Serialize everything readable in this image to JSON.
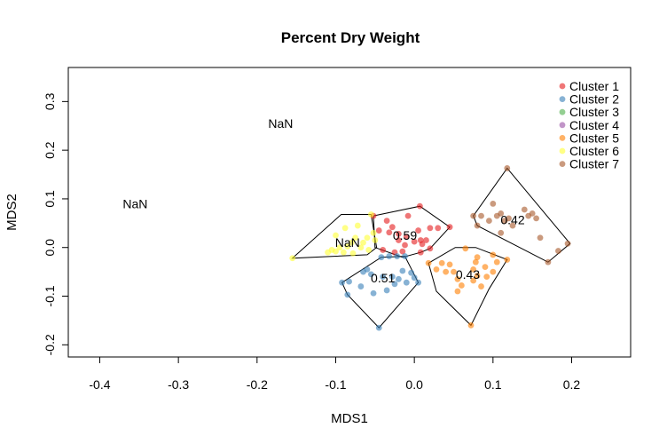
{
  "chart_data": {
    "type": "scatter",
    "title": "Percent Dry Weight",
    "xlabel": "MDS1",
    "ylabel": "MDS2",
    "xlim": [
      -0.44,
      0.275
    ],
    "ylim": [
      -0.225,
      0.37
    ],
    "x_ticks": [
      -0.4,
      -0.3,
      -0.2,
      -0.1,
      0.0,
      0.1,
      0.2
    ],
    "x_tick_labels": [
      "-0.4",
      "-0.3",
      "-0.2",
      "-0.1",
      "0.0",
      "0.1",
      "0.2"
    ],
    "y_ticks": [
      -0.2,
      -0.1,
      0.0,
      0.1,
      0.2,
      0.3
    ],
    "y_tick_labels": [
      "-0.2",
      "-0.1",
      "0.0",
      "0.1",
      "0.2",
      "0.3"
    ],
    "legend_position": "top-right",
    "series": [
      {
        "name": "Cluster 1",
        "color": "#E41A1C",
        "points": [
          [
            -0.035,
            0.055
          ],
          [
            -0.028,
            0.042
          ],
          [
            -0.008,
            0.065
          ],
          [
            -0.045,
            0.035
          ],
          [
            -0.032,
            0.031
          ],
          [
            -0.02,
            0.028
          ],
          [
            -0.01,
            0.022
          ],
          [
            0.005,
            0.035
          ],
          [
            0.02,
            0.04
          ],
          [
            0.03,
            0.04
          ],
          [
            0.008,
            0.015
          ],
          [
            0.015,
            0.015
          ],
          [
            0.0,
            0.012
          ],
          [
            -0.02,
            0.015
          ],
          [
            0.01,
            0.007
          ],
          [
            -0.012,
            0.005
          ],
          [
            0.02,
            -0.002
          ],
          [
            0.008,
            -0.01
          ],
          [
            -0.04,
            -0.005
          ],
          [
            -0.025,
            -0.01
          ],
          [
            -0.015,
            -0.008
          ],
          [
            0.007,
            0.085
          ],
          [
            -0.052,
            0.065
          ],
          [
            0.045,
            0.042
          ]
        ],
        "hull": [
          [
            -0.052,
            0.065
          ],
          [
            0.007,
            0.085
          ],
          [
            0.045,
            0.042
          ],
          [
            0.02,
            -0.002
          ],
          [
            0.008,
            -0.01
          ],
          [
            -0.015,
            -0.02
          ],
          [
            -0.05,
            0.0
          ]
        ]
      },
      {
        "name": "Cluster 2",
        "color": "#377EB8",
        "points": [
          [
            -0.092,
            -0.072
          ],
          [
            -0.083,
            -0.07
          ],
          [
            -0.085,
            -0.097
          ],
          [
            -0.06,
            -0.045
          ],
          [
            -0.055,
            -0.055
          ],
          [
            -0.04,
            -0.06
          ],
          [
            -0.052,
            -0.094
          ],
          [
            -0.042,
            -0.02
          ],
          [
            -0.045,
            -0.165
          ],
          [
            -0.035,
            -0.088
          ],
          [
            -0.028,
            -0.06
          ],
          [
            -0.025,
            -0.075
          ],
          [
            -0.02,
            -0.065
          ],
          [
            -0.015,
            -0.048
          ],
          [
            -0.01,
            -0.072
          ],
          [
            -0.032,
            -0.018
          ],
          [
            -0.022,
            -0.018
          ],
          [
            -0.012,
            -0.018
          ],
          [
            -0.004,
            -0.052
          ],
          [
            0.0,
            -0.062
          ],
          [
            0.005,
            -0.072
          ],
          [
            -0.065,
            -0.05
          ],
          [
            -0.068,
            -0.08
          ]
        ],
        "hull": [
          [
            -0.092,
            -0.072
          ],
          [
            -0.042,
            -0.02
          ],
          [
            -0.012,
            -0.018
          ],
          [
            0.005,
            -0.072
          ],
          [
            -0.045,
            -0.165
          ],
          [
            -0.085,
            -0.097
          ]
        ]
      },
      {
        "name": "Cluster 3",
        "color": "#4DAF4A",
        "points": []
      },
      {
        "name": "Cluster 4",
        "color": "#984EA3",
        "points": []
      },
      {
        "name": "Cluster 5",
        "color": "#FF7F00",
        "points": [
          [
            0.065,
            -0.002
          ],
          [
            0.018,
            -0.032
          ],
          [
            0.028,
            -0.045
          ],
          [
            0.04,
            -0.05
          ],
          [
            0.045,
            -0.035
          ],
          [
            0.05,
            -0.05
          ],
          [
            0.055,
            -0.065
          ],
          [
            0.06,
            -0.078
          ],
          [
            0.075,
            -0.045
          ],
          [
            0.075,
            -0.068
          ],
          [
            0.08,
            -0.058
          ],
          [
            0.085,
            -0.08
          ],
          [
            0.09,
            -0.04
          ],
          [
            0.092,
            -0.06
          ],
          [
            0.08,
            -0.02
          ],
          [
            0.1,
            -0.015
          ],
          [
            0.105,
            -0.03
          ],
          [
            0.1,
            -0.05
          ],
          [
            0.078,
            -0.03
          ],
          [
            0.072,
            -0.16
          ],
          [
            0.118,
            -0.025
          ],
          [
            0.055,
            -0.09
          ],
          [
            0.035,
            -0.032
          ]
        ],
        "hull": [
          [
            0.018,
            -0.032
          ],
          [
            0.052,
            0.0
          ],
          [
            0.078,
            0.0
          ],
          [
            0.118,
            -0.025
          ],
          [
            0.095,
            -0.085
          ],
          [
            0.072,
            -0.16
          ],
          [
            0.028,
            -0.09
          ]
        ]
      },
      {
        "name": "Cluster 6",
        "color": "#FFFF33",
        "points": [
          [
            -0.155,
            -0.022
          ],
          [
            -0.11,
            -0.01
          ],
          [
            -0.105,
            -0.005
          ],
          [
            -0.1,
            -0.008
          ],
          [
            -0.095,
            0.0
          ],
          [
            -0.09,
            -0.01
          ],
          [
            -0.085,
            0.002
          ],
          [
            -0.08,
            0.01
          ],
          [
            -0.075,
            0.02
          ],
          [
            -0.072,
            0.045
          ],
          [
            -0.068,
            0.0
          ],
          [
            -0.065,
            0.01
          ],
          [
            -0.06,
            0.02
          ],
          [
            -0.058,
            -0.005
          ],
          [
            -0.055,
            0.068
          ],
          [
            -0.052,
            0.03
          ],
          [
            -0.05,
            0.015
          ],
          [
            -0.088,
            0.04
          ],
          [
            -0.1,
            0.025
          ],
          [
            -0.078,
            -0.012
          ]
        ],
        "hull": [
          [
            -0.155,
            -0.022
          ],
          [
            -0.093,
            0.068
          ],
          [
            -0.055,
            0.068
          ],
          [
            -0.048,
            0.0
          ],
          [
            -0.06,
            -0.015
          ]
        ]
      },
      {
        "name": "Cluster 7",
        "color": "#A65628",
        "points": [
          [
            0.118,
            0.163
          ],
          [
            0.075,
            0.065
          ],
          [
            0.085,
            0.065
          ],
          [
            0.08,
            0.045
          ],
          [
            0.1,
            0.09
          ],
          [
            0.105,
            0.065
          ],
          [
            0.11,
            0.07
          ],
          [
            0.115,
            0.055
          ],
          [
            0.12,
            0.06
          ],
          [
            0.095,
            0.055
          ],
          [
            0.14,
            0.078
          ],
          [
            0.15,
            0.07
          ],
          [
            0.145,
            0.065
          ],
          [
            0.16,
            0.02
          ],
          [
            0.125,
            0.045
          ],
          [
            0.11,
            0.03
          ],
          [
            0.155,
            0.06
          ],
          [
            0.17,
            -0.03
          ],
          [
            0.195,
            0.008
          ],
          [
            0.183,
            -0.007
          ]
        ],
        "hull": [
          [
            0.075,
            0.065
          ],
          [
            0.118,
            0.163
          ],
          [
            0.198,
            0.008
          ],
          [
            0.17,
            -0.03
          ],
          [
            0.08,
            0.045
          ]
        ]
      }
    ],
    "annotations": [
      {
        "text": "NaN",
        "x": -0.355,
        "y": 0.09
      },
      {
        "text": "NaN",
        "x": -0.17,
        "y": 0.255
      },
      {
        "text": "NaN",
        "x": -0.085,
        "y": 0.01
      },
      {
        "text": "0.59",
        "x": -0.012,
        "y": 0.025
      },
      {
        "text": "0.51",
        "x": -0.04,
        "y": -0.063
      },
      {
        "text": "0.43",
        "x": 0.068,
        "y": -0.055
      },
      {
        "text": "0.42",
        "x": 0.125,
        "y": 0.057
      }
    ]
  }
}
